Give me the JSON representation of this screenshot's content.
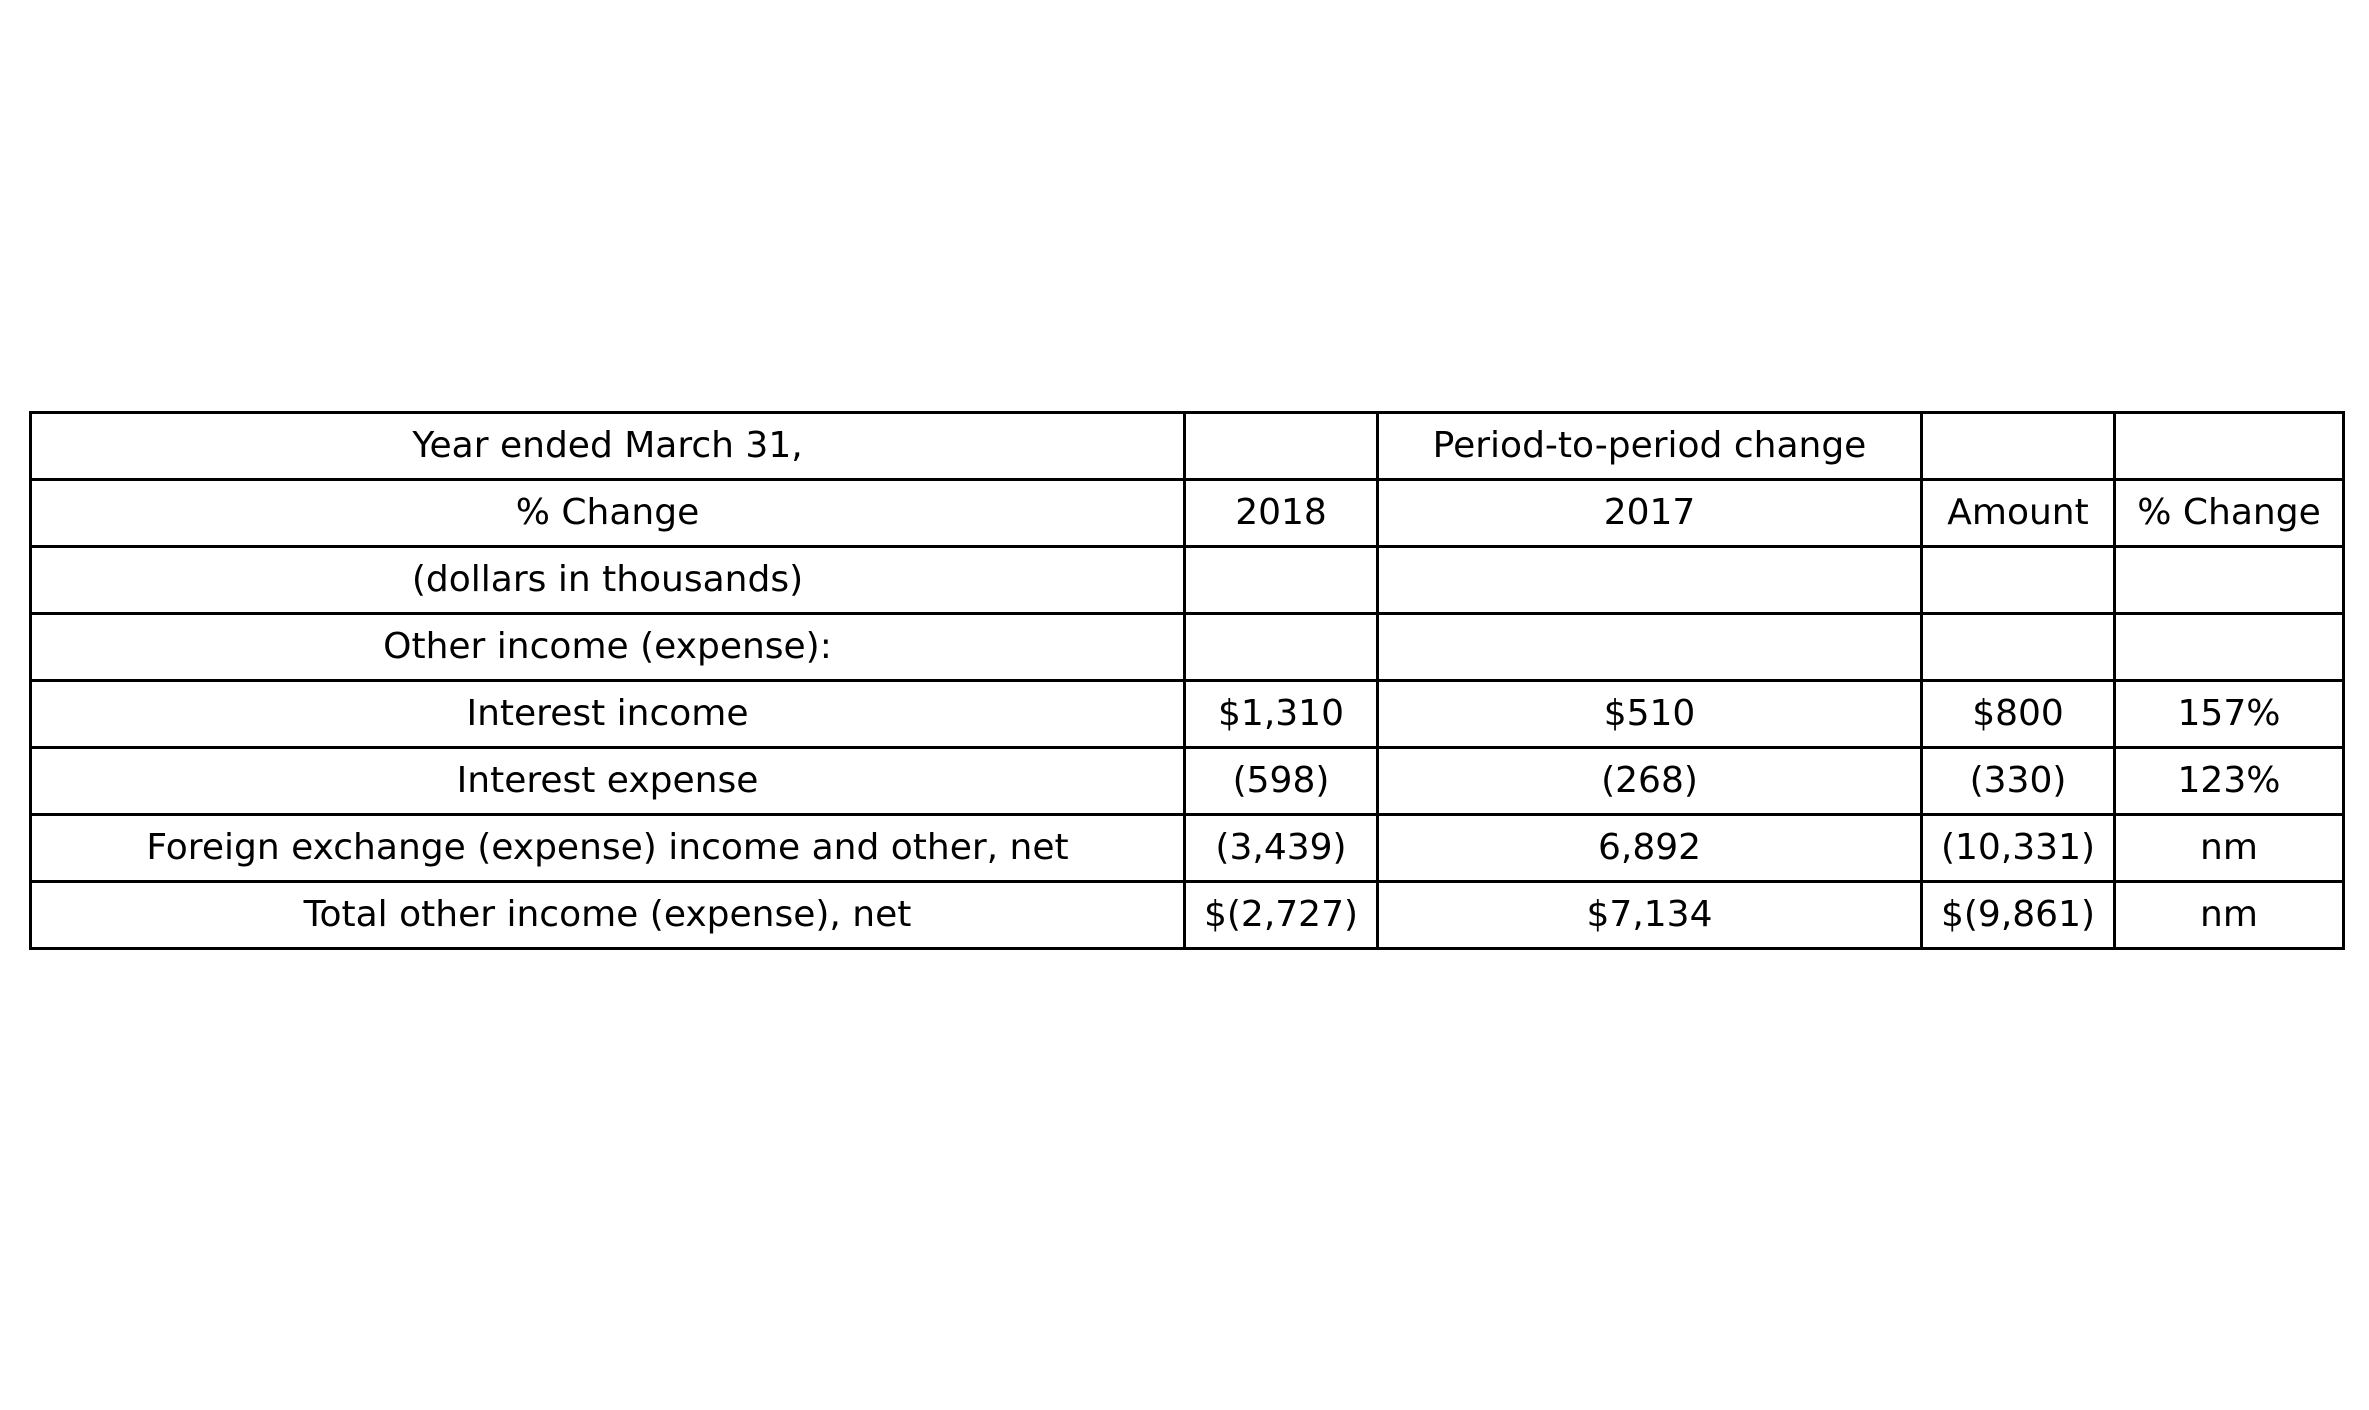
{
  "table": {
    "rows": [
      [
        "Year ended March 31,",
        "",
        "Period-to-period change",
        "",
        ""
      ],
      [
        "% Change",
        "2018",
        "2017",
        "Amount",
        "% Change"
      ],
      [
        "(dollars in thousands)",
        "",
        "",
        "",
        ""
      ],
      [
        "Other income (expense):",
        "",
        "",
        "",
        ""
      ],
      [
        "Interest income",
        "$1,310",
        "$510",
        "$800",
        "157%"
      ],
      [
        "Interest expense",
        "(598)",
        "(268)",
        "(330)",
        "123%"
      ],
      [
        "Foreign exchange (expense) income and other, net",
        "(3,439)",
        "6,892",
        "(10,331)",
        "nm"
      ],
      [
        "Total other income (expense), net",
        "$(2,727)",
        "$7,134",
        "$(9,861)",
        "nm"
      ]
    ]
  }
}
